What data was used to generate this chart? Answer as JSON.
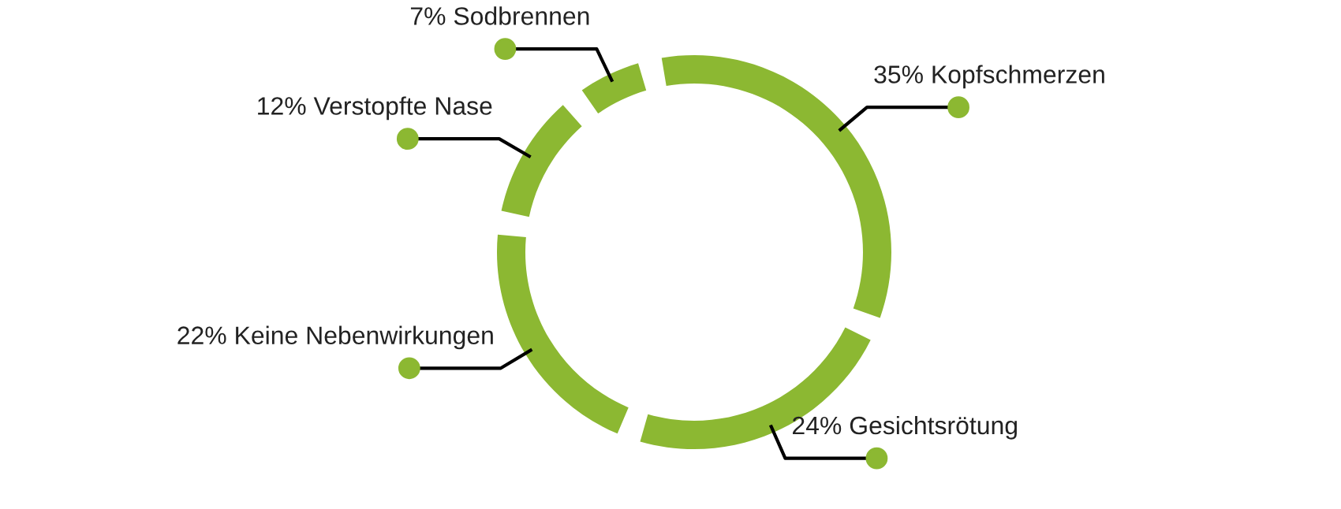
{
  "chart_data": {
    "type": "donut",
    "categories": [
      "Kopfschmerzen",
      "Gesichtsrötung",
      "Keine Nebenwirkungen",
      "Verstopfte Nase",
      "Sodbrennen"
    ],
    "values": [
      35,
      24,
      22,
      12,
      7
    ],
    "value_labels": [
      "35%",
      "24%",
      "22%",
      "12%",
      "7%"
    ],
    "colors": [
      "#8cb832",
      "#8cb832",
      "#8cb832",
      "#8cb832",
      "#8cb832"
    ],
    "legend": false
  }
}
